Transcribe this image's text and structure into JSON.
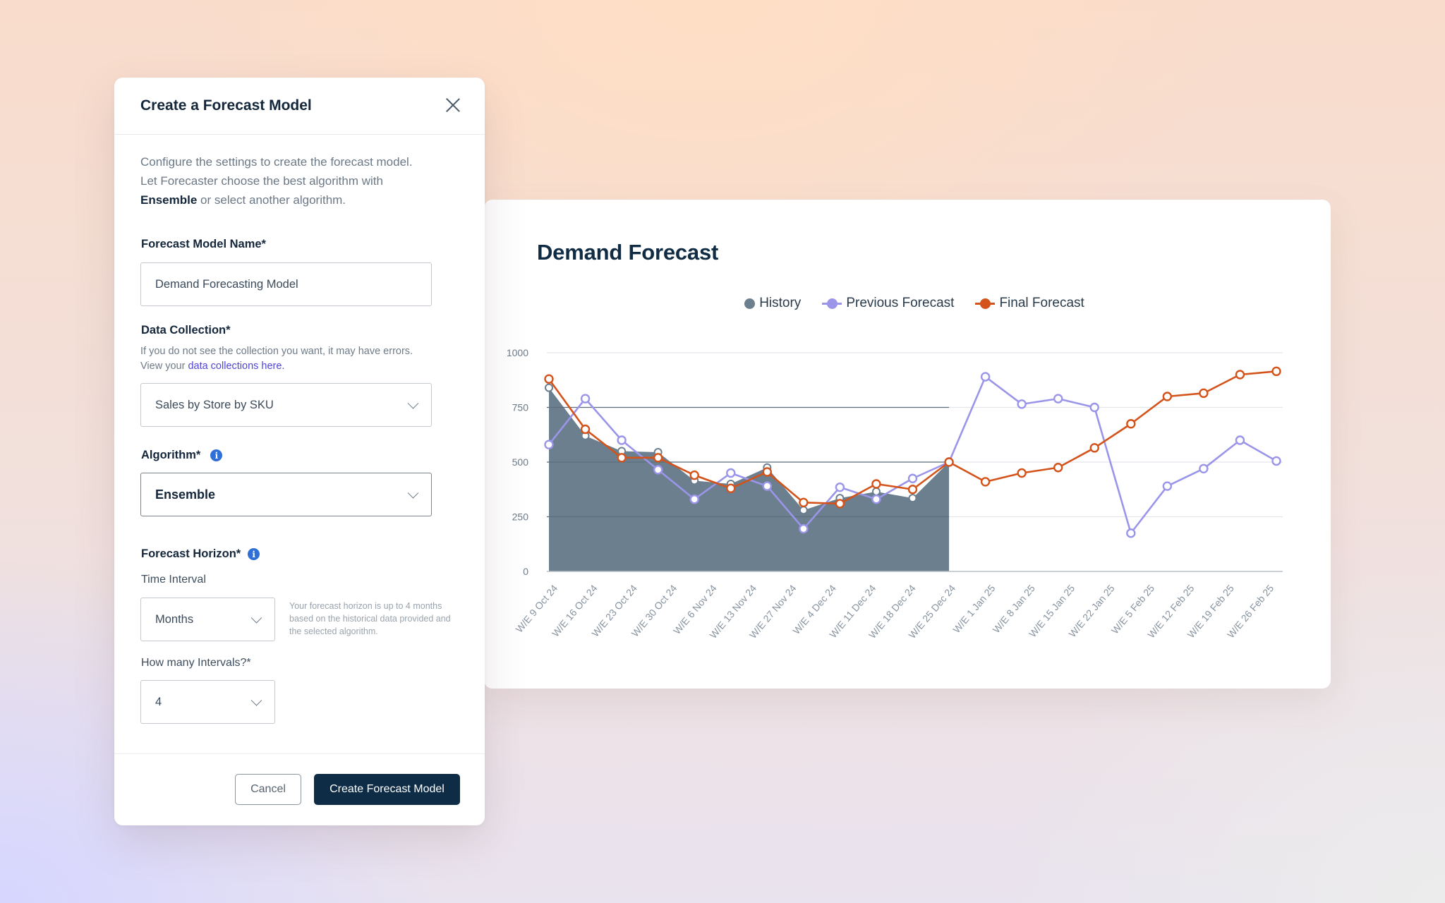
{
  "modal": {
    "title": "Create a Forecast Model",
    "intro_line1": "Configure the settings to create the forecast model.",
    "intro_line2": "Let Forecaster choose the best algorithm with",
    "intro_bold": "Ensemble",
    "intro_rest": " or select another algorithm.",
    "model_name": {
      "label": "Forecast Model Name*",
      "value": "Demand Forecasting Model"
    },
    "data_collection": {
      "label": "Data Collection*",
      "helper": "If you do not see the collection you want, it may have errors.",
      "helper_prefix": "View your ",
      "helper_link": "data collections here.",
      "value": "Sales by Store by SKU"
    },
    "algorithm": {
      "label": "Algorithm*",
      "value": "Ensemble"
    },
    "forecast_horizon": {
      "label": "Forecast Horizon*",
      "time_interval_label": "Time Interval",
      "time_interval_value": "Months",
      "note": "Your forecast horizon is up to 4 months based on the historical data provided and the selected algorithm.",
      "intervals_label": "How many Intervals?*",
      "intervals_value": "4"
    },
    "buttons": {
      "cancel": "Cancel",
      "create": "Create Forecast Model"
    }
  },
  "chart": {
    "title": "Demand Forecast",
    "legend": [
      {
        "label": "History",
        "color": "#6b7f8e"
      },
      {
        "label": "Previous Forecast",
        "color": "#9b95ea"
      },
      {
        "label": "Final Forecast",
        "color": "#d4531a"
      }
    ]
  },
  "chart_data": {
    "type": "line",
    "title": "Demand Forecast",
    "xlabel": "",
    "ylabel": "",
    "ylim": [
      0,
      1000
    ],
    "yticks": [
      0,
      250,
      500,
      750,
      1000
    ],
    "grid": true,
    "legend_position": "top-center",
    "categories": [
      "W/E 9 Oct 24",
      "W/E 16 Oct 24",
      "W/E 23 Oct 24",
      "W/E 30 Oct 24",
      "W/E 6 Nov 24",
      "W/E 13 Nov 24",
      "W/E 27 Nov 24",
      "W/E 4 Dec 24",
      "W/E 11 Dec 24",
      "W/E 18 Dec 24",
      "W/E 25 Dec 24",
      "W/E 1 Jan 25",
      "W/E 8 Jan 25",
      "W/E 15 Jan 25",
      "W/E 22 Jan 25",
      "W/E 5 Feb 25",
      "W/E 12 Feb 25",
      "W/E 19 Feb 25",
      "W/E 26 Feb 25"
    ],
    "point_count": 21,
    "series": [
      {
        "name": "History",
        "style": "area",
        "color": "#6b7f8e",
        "values": [
          840,
          620,
          550,
          545,
          415,
          400,
          475,
          280,
          335,
          365,
          335,
          500
        ]
      },
      {
        "name": "Previous Forecast",
        "style": "line",
        "color": "#9b95ea",
        "values": [
          580,
          790,
          600,
          465,
          330,
          450,
          390,
          195,
          385,
          330,
          425,
          500,
          890,
          765,
          790,
          750,
          175,
          390,
          470,
          600,
          505
        ]
      },
      {
        "name": "Final Forecast",
        "style": "line",
        "color": "#d4531a",
        "values": [
          880,
          650,
          520,
          520,
          440,
          380,
          455,
          315,
          310,
          400,
          375,
          500,
          410,
          450,
          475,
          565,
          675,
          800,
          815,
          900,
          915
        ]
      }
    ]
  }
}
